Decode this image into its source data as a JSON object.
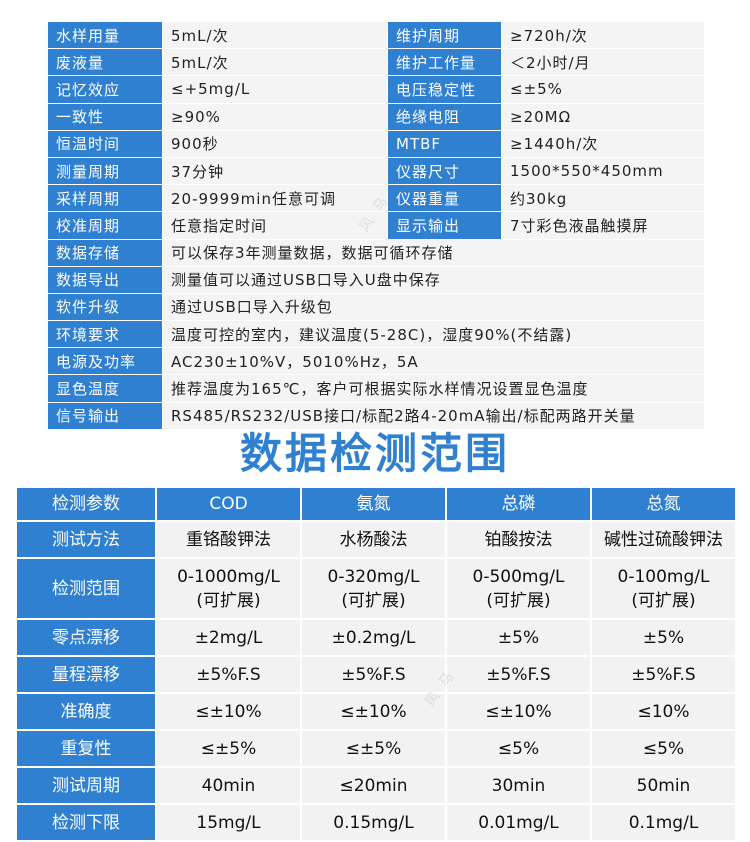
{
  "specs": [
    {
      "l1": "水样用量",
      "v1": "5mL/次",
      "l2": "维护周期",
      "v2": "≥720h/次"
    },
    {
      "l1": "废液量",
      "v1": "5mL/次",
      "l2": "维护工作量",
      "v2": "＜2小时/月"
    },
    {
      "l1": "记忆效应",
      "v1": "≤+5mg/L",
      "l2": "电压稳定性",
      "v2": "≤±5%"
    },
    {
      "l1": "一致性",
      "v1": "≥90%",
      "l2": "绝缘电阻",
      "v2": "≥20MΩ"
    },
    {
      "l1": "恒温时间",
      "v1": "900秒",
      "l2": "MTBF",
      "v2": "≥1440h/次"
    },
    {
      "l1": "测量周期",
      "v1": "37分钟",
      "l2": "仪器尺寸",
      "v2": "1500*550*450mm"
    },
    {
      "l1": "采样周期",
      "v1": "20-9999min任意可调",
      "l2": "仪器重量",
      "v2": "约30kg"
    },
    {
      "l1": "校准周期",
      "v1": "任意指定时间",
      "l2": "显示输出",
      "v2": "7寸彩色液晶触摸屏"
    }
  ],
  "specs_wide": [
    {
      "l": "数据存储",
      "v": "可以保存3年测量数据，数据可循环存储"
    },
    {
      "l": "数据导出",
      "v": "测量值可以通过USB口导入U盘中保存"
    },
    {
      "l": "软件升级",
      "v": "通过USB口导入升级包"
    },
    {
      "l": "环境要求",
      "v": "温度可控的室内，建议温度(5-28C)，湿度90%(不结露)"
    },
    {
      "l": "电源及功率",
      "v": "AC230±10%V，5010%Hz，5A"
    },
    {
      "l": "显色温度",
      "v": "推荐温度为165℃，客户可根据实际水样情况设置显色温度"
    },
    {
      "l": "信号输出",
      "v": "RS485/RS232/USB接口/标配2路4-20mA输出/标配两路开关量"
    }
  ],
  "heading": "数据检测范围",
  "range": {
    "header": [
      "检测参数",
      "COD",
      "氨氮",
      "总磷",
      "总氮"
    ],
    "rows": [
      {
        "label": "测试方法",
        "cells": [
          "重铬酸钾法",
          "水杨酸法",
          "铂酸按法",
          "碱性过硫酸钾法"
        ]
      },
      {
        "label": "检测范围",
        "cells": [
          "0-1000mg/L",
          "0-320mg/L",
          "0-500mg/L",
          "0-100mg/L"
        ],
        "sub": [
          "(可扩展)",
          "(可扩展)",
          "(可扩展)",
          "(可扩展)"
        ]
      },
      {
        "label": "零点漂移",
        "cells": [
          "±2mg/L",
          "±0.2mg/L",
          "±5%",
          "±5%"
        ]
      },
      {
        "label": "量程漂移",
        "cells": [
          "±5%F.S",
          "±5%F.S",
          "±5%F.S",
          "±5%F.S"
        ]
      },
      {
        "label": "准确度",
        "cells": [
          "≤±10%",
          "≤±10%",
          "≤±10%",
          "≤10%"
        ]
      },
      {
        "label": "重复性",
        "cells": [
          "≤±5%",
          "≤±5%",
          "≤5%",
          "≤5%"
        ]
      },
      {
        "label": "测试周期",
        "cells": [
          "40min",
          "≤20min",
          "30min",
          "50min"
        ]
      },
      {
        "label": "检测下限",
        "cells": [
          "15mg/L",
          "0.15mg/L",
          "0.01mg/L",
          "0.1mg/L"
        ]
      }
    ]
  },
  "watermark": "风马"
}
